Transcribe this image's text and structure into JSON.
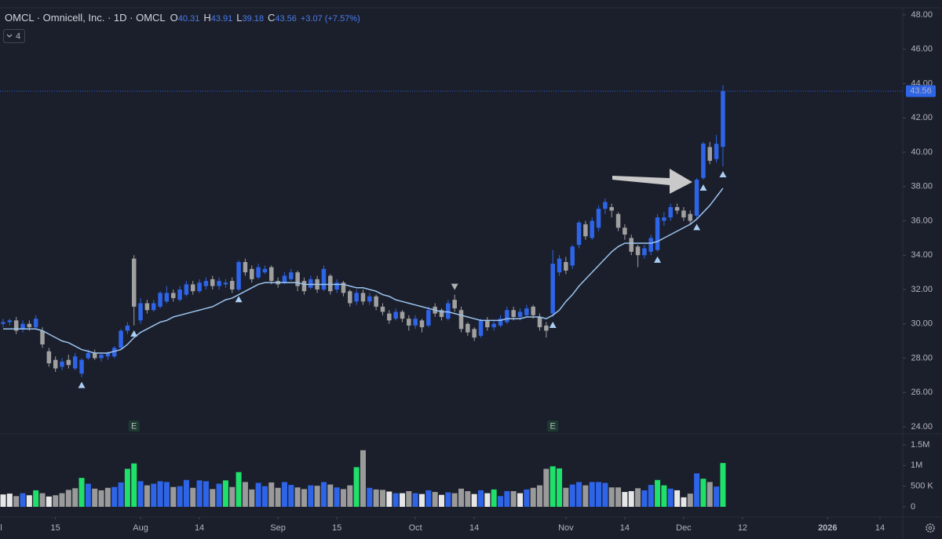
{
  "chart_data": {
    "type": "candlestick",
    "title": "OMCL · Omnicell, Inc. · 1D · OMCL",
    "ohlc_labels": [
      "O",
      "H",
      "L",
      "C"
    ],
    "change": "+3.07 (+7.57%)",
    "indicator_count": 4,
    "up_color": "#2e64e8",
    "down_color": "#a0a0a0",
    "ma_color": "#9cc4ee",
    "xlim": [
      -0.48,
      137.48
    ],
    "xticks": [
      {
        "value": -1,
        "label": "Jul"
      },
      {
        "value": 8,
        "label": "15"
      },
      {
        "value": 21,
        "label": "Aug"
      },
      {
        "value": 30,
        "label": "14"
      },
      {
        "value": 42,
        "label": "Sep"
      },
      {
        "value": 51,
        "label": "15"
      },
      {
        "value": 63,
        "label": "Oct"
      },
      {
        "value": 72,
        "label": "14"
      },
      {
        "value": 86,
        "label": "Nov"
      },
      {
        "value": 95,
        "label": "14"
      },
      {
        "value": 104,
        "label": "Dec"
      },
      {
        "value": 113,
        "label": "12"
      },
      {
        "value": 126,
        "label": "2026",
        "bold": true
      },
      {
        "value": 134,
        "label": "14"
      }
    ],
    "ylim": [
      24,
      48
    ],
    "yticks": [
      {
        "value": 24,
        "label": "24.00"
      },
      {
        "value": 26,
        "label": "26.00"
      },
      {
        "value": 28,
        "label": "28.00"
      },
      {
        "value": 30,
        "label": "30.00"
      },
      {
        "value": 32,
        "label": "32.00"
      },
      {
        "value": 34,
        "label": "34.00"
      },
      {
        "value": 36,
        "label": "36.00"
      },
      {
        "value": 38,
        "label": "38.00"
      },
      {
        "value": 40,
        "label": "40.00"
      },
      {
        "value": 42,
        "label": "42.00"
      },
      {
        "value": 44,
        "label": "44.00"
      },
      {
        "value": 46,
        "label": "46.00"
      },
      {
        "value": 48,
        "label": "48.00"
      }
    ],
    "vlim": [
      0,
      1500000
    ],
    "vticks": [
      0,
      {
        "value": 500000,
        "label": "500 K"
      },
      {
        "value": 1000000,
        "label": "1M"
      },
      {
        "value": 1500000,
        "label": "1.5M"
      }
    ],
    "open": [
      30.0,
      30.1,
      30.2,
      29.7,
      30.0,
      29.8,
      29.6,
      28.4,
      27.9,
      27.5,
      27.9,
      27.4,
      27.1,
      28.0,
      28.3,
      28.0,
      28.1,
      28.1,
      28.6,
      29.6,
      33.8,
      30.2,
      31.2,
      30.8,
      31.0,
      31.3,
      31.8,
      31.4,
      31.7,
      32.3,
      31.9,
      32.2,
      32.6,
      32.2,
      32.3,
      32.5,
      32.0,
      33.6,
      33.2,
      32.7,
      33.0,
      33.3,
      32.5,
      32.4,
      32.6,
      33.0,
      32.5,
      32.1,
      32.6,
      32.0,
      32.8,
      32.0,
      32.4,
      31.9,
      31.3,
      31.8,
      31.3,
      31.6,
      31.0,
      30.6,
      30.3,
      30.7,
      30.3,
      29.9,
      30.2,
      29.9,
      31.0,
      30.8,
      30.3,
      31.4,
      30.8,
      30.0,
      29.7,
      29.3,
      30.2,
      29.8,
      29.9,
      30.1,
      30.8,
      30.4,
      30.5,
      31.0,
      30.4,
      29.9,
      30.6,
      33.0,
      33.6,
      33.4,
      34.6,
      35.8,
      35.0,
      35.6,
      36.7,
      36.8,
      36.4,
      35.6,
      35.0,
      34.5,
      34.0,
      34.2,
      34.3,
      36.0,
      36.2,
      36.8,
      36.6,
      36.4,
      36.3,
      38.5,
      40.3,
      39.6,
      40.31
    ],
    "high": [
      30.3,
      30.3,
      30.4,
      30.2,
      30.2,
      30.5,
      29.8,
      28.6,
      28.1,
      28.0,
      28.2,
      28.3,
      28.0,
      28.5,
      28.5,
      28.3,
      28.4,
      28.7,
      29.7,
      30.1,
      34.0,
      31.5,
      31.4,
      31.4,
      31.9,
      32.2,
      32.0,
      32.2,
      32.5,
      32.5,
      32.6,
      32.7,
      32.8,
      32.7,
      32.6,
      32.7,
      33.7,
      33.8,
      33.4,
      33.5,
      33.4,
      33.4,
      32.7,
      33.0,
      33.2,
      33.1,
      32.7,
      32.8,
      32.8,
      33.4,
      32.9,
      32.6,
      32.5,
      32.0,
      32.0,
      32.0,
      31.8,
      31.7,
      31.2,
      30.8,
      30.9,
      30.8,
      30.5,
      30.5,
      30.3,
      31.0,
      31.2,
      30.9,
      31.4,
      31.7,
      31.0,
      30.1,
      29.8,
      30.3,
      30.4,
      30.2,
      30.5,
      31.0,
      31.0,
      30.9,
      31.1,
      31.1,
      30.6,
      30.1,
      34.3,
      34.0,
      33.9,
      34.6,
      36.0,
      36.0,
      36.2,
      36.9,
      37.3,
      37.0,
      36.5,
      35.8,
      35.2,
      34.6,
      34.6,
      35.2,
      36.4,
      36.5,
      37.0,
      37.0,
      36.8,
      36.6,
      38.5,
      40.6,
      40.6,
      41.0,
      43.91
    ],
    "low": [
      29.8,
      29.9,
      29.4,
      29.5,
      29.6,
      29.7,
      28.6,
      27.5,
      27.2,
      27.3,
      27.4,
      27.3,
      26.9,
      27.9,
      27.9,
      27.8,
      27.9,
      28.0,
      28.5,
      29.4,
      29.9,
      30.0,
      30.6,
      30.7,
      30.9,
      31.2,
      31.3,
      31.3,
      31.6,
      31.7,
      31.8,
      32.0,
      32.0,
      32.0,
      32.1,
      31.8,
      31.9,
      32.8,
      32.4,
      32.6,
      32.9,
      32.3,
      32.1,
      32.3,
      32.5,
      31.9,
      31.7,
      32.0,
      31.8,
      31.9,
      31.7,
      31.8,
      31.6,
      31.0,
      31.1,
      31.1,
      31.1,
      30.8,
      30.5,
      30.0,
      30.2,
      30.1,
      29.6,
      29.7,
      29.5,
      29.8,
      30.4,
      30.2,
      30.2,
      30.7,
      29.5,
      29.3,
      29.0,
      29.2,
      29.6,
      29.6,
      29.8,
      30.0,
      30.2,
      30.2,
      30.4,
      30.3,
      29.6,
      29.2,
      30.4,
      32.8,
      32.9,
      33.2,
      34.4,
      34.9,
      34.9,
      35.4,
      36.4,
      36.2,
      35.4,
      34.9,
      34.0,
      33.3,
      33.8,
      34.0,
      34.2,
      35.7,
      36.0,
      36.4,
      36.0,
      35.8,
      36.1,
      38.4,
      39.3,
      39.4,
      39.18
    ],
    "close": [
      30.1,
      30.2,
      29.6,
      30.0,
      29.8,
      30.3,
      28.8,
      27.7,
      27.4,
      27.8,
      27.6,
      28.1,
      27.9,
      28.3,
      28.0,
      28.2,
      28.3,
      28.6,
      29.6,
      29.9,
      31.0,
      31.2,
      30.8,
      31.2,
      31.8,
      31.8,
      31.5,
      32.0,
      32.3,
      31.9,
      32.4,
      32.5,
      32.2,
      32.5,
      32.4,
      32.0,
      33.6,
      33.0,
      32.6,
      33.3,
      33.2,
      32.5,
      32.3,
      32.8,
      33.0,
      32.2,
      31.9,
      32.6,
      32.0,
      33.2,
      31.9,
      32.4,
      31.8,
      31.2,
      31.8,
      31.3,
      31.6,
      31.0,
      30.7,
      30.2,
      30.7,
      30.3,
      29.9,
      30.3,
      29.8,
      30.8,
      30.6,
      30.4,
      31.2,
      30.9,
      29.7,
      29.5,
      29.2,
      30.2,
      29.8,
      30.0,
      30.3,
      30.8,
      30.4,
      30.7,
      30.9,
      30.5,
      29.8,
      29.6,
      33.5,
      33.8,
      33.1,
      34.5,
      35.9,
      35.1,
      36.0,
      36.7,
      37.1,
      36.6,
      35.6,
      35.2,
      34.2,
      34.0,
      34.4,
      35.0,
      36.2,
      36.2,
      36.8,
      36.6,
      36.2,
      36.0,
      38.4,
      40.5,
      39.5,
      40.49,
      43.56
    ],
    "ma": [
      29.7,
      29.7,
      29.7,
      29.7,
      29.7,
      29.7,
      29.6,
      29.4,
      29.2,
      29.0,
      28.9,
      28.7,
      28.5,
      28.4,
      28.3,
      28.3,
      28.3,
      28.4,
      28.5,
      28.8,
      29.2,
      29.5,
      29.7,
      29.9,
      30.1,
      30.2,
      30.4,
      30.5,
      30.6,
      30.7,
      30.8,
      30.9,
      31.0,
      31.2,
      31.4,
      31.5,
      31.7,
      31.9,
      32.1,
      32.3,
      32.4,
      32.4,
      32.4,
      32.4,
      32.4,
      32.4,
      32.3,
      32.3,
      32.3,
      32.3,
      32.3,
      32.3,
      32.3,
      32.2,
      32.1,
      32.1,
      32.0,
      31.9,
      31.7,
      31.6,
      31.4,
      31.3,
      31.2,
      31.1,
      31.0,
      30.9,
      30.8,
      30.7,
      30.7,
      30.6,
      30.5,
      30.4,
      30.3,
      30.2,
      30.2,
      30.2,
      30.2,
      30.3,
      30.3,
      30.3,
      30.4,
      30.4,
      30.4,
      30.3,
      30.5,
      30.8,
      31.3,
      31.7,
      32.2,
      32.6,
      33.0,
      33.4,
      33.8,
      34.2,
      34.5,
      34.7,
      34.7,
      34.7,
      34.7,
      34.7,
      34.8,
      35.0,
      35.2,
      35.4,
      35.6,
      35.8,
      36.1,
      36.5,
      36.9,
      37.4,
      37.9
    ],
    "volume": [
      300000,
      320000,
      260000,
      330000,
      280000,
      400000,
      330000,
      250000,
      280000,
      330000,
      410000,
      450000,
      700000,
      560000,
      440000,
      400000,
      460000,
      480000,
      590000,
      920000,
      1050000,
      620000,
      520000,
      560000,
      620000,
      600000,
      480000,
      500000,
      650000,
      460000,
      640000,
      620000,
      430000,
      560000,
      640000,
      480000,
      840000,
      600000,
      420000,
      580000,
      500000,
      590000,
      460000,
      600000,
      530000,
      470000,
      430000,
      520000,
      510000,
      600000,
      540000,
      470000,
      430000,
      520000,
      960000,
      1370000,
      460000,
      420000,
      410000,
      370000,
      330000,
      330000,
      380000,
      330000,
      310000,
      400000,
      360000,
      290000,
      350000,
      330000,
      440000,
      380000,
      310000,
      400000,
      330000,
      420000,
      260000,
      380000,
      380000,
      330000,
      420000,
      460000,
      520000,
      920000,
      980000,
      930000,
      460000,
      540000,
      600000,
      520000,
      600000,
      600000,
      580000,
      470000,
      470000,
      360000,
      380000,
      450000,
      400000,
      530000,
      650000,
      520000,
      440000,
      400000,
      230000,
      320000,
      810000,
      680000,
      600000,
      490000,
      1060000
    ],
    "volume_colors": [
      "#e6e6e6",
      "#e6e6e6",
      "#9a9a9a",
      "#2e64e8",
      "#e6e6e6",
      "#1fe06a",
      "#9a9a9a",
      "#e6e6e6",
      "#9a9a9a",
      "#9a9a9a",
      "#9a9a9a",
      "#9a9a9a",
      "#1fe06a",
      "#2e64e8",
      "#9a9a9a",
      "#9a9a9a",
      "#9a9a9a",
      "#2e64e8",
      "#2e64e8",
      "#1fe06a",
      "#1fe06a",
      "#2e64e8",
      "#9a9a9a",
      "#2e64e8",
      "#2e64e8",
      "#2e64e8",
      "#9a9a9a",
      "#2e64e8",
      "#2e64e8",
      "#9a9a9a",
      "#2e64e8",
      "#2e64e8",
      "#9a9a9a",
      "#2e64e8",
      "#1fe06a",
      "#9a9a9a",
      "#1fe06a",
      "#9a9a9a",
      "#9a9a9a",
      "#2e64e8",
      "#2e64e8",
      "#9a9a9a",
      "#9a9a9a",
      "#2e64e8",
      "#2e64e8",
      "#9a9a9a",
      "#9a9a9a",
      "#2e64e8",
      "#9a9a9a",
      "#2e64e8",
      "#9a9a9a",
      "#2e64e8",
      "#9a9a9a",
      "#9a9a9a",
      "#1fe06a",
      "#9a9a9a",
      "#2e64e8",
      "#9a9a9a",
      "#9a9a9a",
      "#e6e6e6",
      "#2e64e8",
      "#e6e6e6",
      "#9a9a9a",
      "#2e64e8",
      "#e6e6e6",
      "#2e64e8",
      "#9a9a9a",
      "#e6e6e6",
      "#2e64e8",
      "#9a9a9a",
      "#9a9a9a",
      "#9a9a9a",
      "#e6e6e6",
      "#2e64e8",
      "#e6e6e6",
      "#1fe06a",
      "#2e64e8",
      "#2e64e8",
      "#9a9a9a",
      "#e6e6e6",
      "#2e64e8",
      "#9a9a9a",
      "#9a9a9a",
      "#9a9a9a",
      "#1fe06a",
      "#1fe06a",
      "#9a9a9a",
      "#2e64e8",
      "#2e64e8",
      "#9a9a9a",
      "#2e64e8",
      "#2e64e8",
      "#2e64e8",
      "#9a9a9a",
      "#9a9a9a",
      "#e6e6e6",
      "#e6e6e6",
      "#9a9a9a",
      "#2e64e8",
      "#2e64e8",
      "#1fe06a",
      "#1fe06a",
      "#2e64e8",
      "#e6e6e6",
      "#e6e6e6",
      "#9a9a9a",
      "#2e64e8",
      "#1fe06a",
      "#9a9a9a",
      "#2e64e8",
      "#1fe06a"
    ],
    "up_signals": [
      12,
      20,
      36,
      84,
      100,
      106,
      107,
      110
    ],
    "down_signals": [
      69
    ],
    "earnings": [
      {
        "index": 20,
        "label": "E"
      },
      {
        "index": 84,
        "label": "E"
      }
    ]
  }
}
